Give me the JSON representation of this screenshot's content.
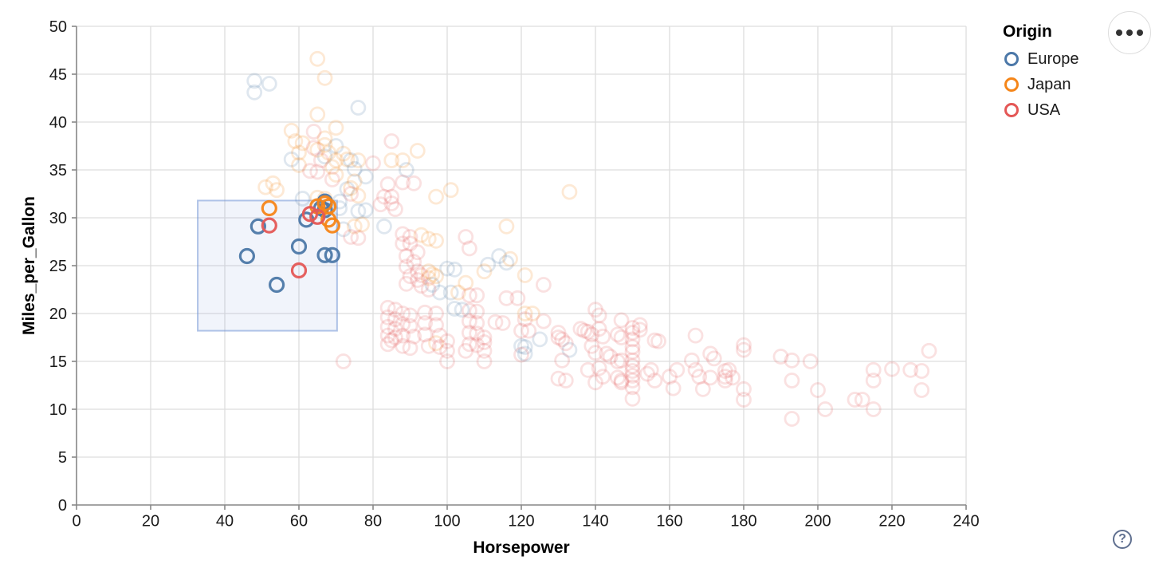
{
  "chart_data": {
    "type": "scatter",
    "xlabel": "Horsepower",
    "ylabel": "Miles_per_Gallon",
    "xlim": [
      0,
      240
    ],
    "ylim": [
      0,
      50
    ],
    "xticks": [
      0,
      20,
      40,
      60,
      80,
      100,
      120,
      140,
      160,
      180,
      200,
      220,
      240
    ],
    "yticks": [
      0,
      5,
      10,
      15,
      20,
      25,
      30,
      35,
      40,
      45,
      50
    ],
    "grid": true,
    "legend": {
      "title": "Origin",
      "position": "top-right",
      "entries": [
        {
          "label": "Europe",
          "color": "#4c78a8"
        },
        {
          "label": "Japan",
          "color": "#f58518"
        },
        {
          "label": "USA",
          "color": "#e45756"
        }
      ]
    },
    "brush": {
      "x": [
        32.7,
        70.3
      ],
      "y": [
        18.2,
        31.8
      ]
    },
    "series": [
      {
        "name": "Europe",
        "color": "#4c78a8",
        "selected": [
          [
            49,
            29.1
          ],
          [
            46,
            26
          ],
          [
            54,
            23
          ],
          [
            60,
            27
          ],
          [
            62,
            29.8
          ],
          [
            66,
            31
          ],
          [
            67,
            30.8
          ],
          [
            67,
            31.7
          ],
          [
            67,
            26.1
          ],
          [
            69,
            26.1
          ]
        ],
        "unselected": [
          [
            48,
            44.3
          ],
          [
            52,
            44
          ],
          [
            48,
            43.1
          ],
          [
            76,
            41.5
          ],
          [
            70,
            37.5
          ],
          [
            74,
            36
          ],
          [
            58,
            36.1
          ],
          [
            89,
            35
          ],
          [
            75,
            35.1
          ],
          [
            78,
            34.3
          ],
          [
            67,
            36.4
          ],
          [
            61,
            32
          ],
          [
            73,
            33
          ],
          [
            71,
            31.7
          ],
          [
            72,
            28.8
          ],
          [
            76,
            30.7
          ],
          [
            78,
            30.8
          ],
          [
            71,
            31
          ],
          [
            83,
            29.1
          ],
          [
            114,
            26
          ],
          [
            116,
            25.3
          ],
          [
            111,
            25.1
          ],
          [
            100,
            24.7
          ],
          [
            102,
            24.6
          ],
          [
            96,
            23
          ],
          [
            98,
            22.2
          ],
          [
            101,
            22.2
          ],
          [
            102,
            20.5
          ],
          [
            104,
            20.4
          ],
          [
            120,
            16.6
          ],
          [
            121,
            16.5
          ],
          [
            121,
            15.8
          ],
          [
            125,
            17.3
          ],
          [
            133,
            16.2
          ]
        ]
      },
      {
        "name": "Japan",
        "color": "#f58518",
        "selected": [
          [
            52,
            31
          ],
          [
            65,
            31.2
          ],
          [
            67,
            31.5
          ],
          [
            68,
            31.2
          ],
          [
            68,
            29.8
          ],
          [
            69,
            29.2
          ]
        ],
        "unselected": [
          [
            65,
            46.6
          ],
          [
            67,
            44.6
          ],
          [
            65,
            40.8
          ],
          [
            70,
            39.4
          ],
          [
            58,
            39.1
          ],
          [
            59,
            38
          ],
          [
            61,
            37.8
          ],
          [
            67,
            38.3
          ],
          [
            67,
            37.6
          ],
          [
            65,
            37.1
          ],
          [
            92,
            37
          ],
          [
            76,
            36
          ],
          [
            85,
            36
          ],
          [
            88,
            36
          ],
          [
            70,
            36
          ],
          [
            60,
            36.8
          ],
          [
            68,
            36.8
          ],
          [
            72,
            36.7
          ],
          [
            73,
            36.1
          ],
          [
            60,
            35.5
          ],
          [
            69,
            35.3
          ],
          [
            75,
            33.8
          ],
          [
            74,
            33.1
          ],
          [
            76,
            32.3
          ],
          [
            51,
            33.2
          ],
          [
            53,
            33.6
          ],
          [
            54,
            32.9
          ],
          [
            65,
            32.1
          ],
          [
            67,
            32
          ],
          [
            97,
            32.2
          ],
          [
            101,
            32.9
          ],
          [
            133,
            32.7
          ],
          [
            70,
            34.5
          ],
          [
            75,
            29.1
          ],
          [
            77,
            29.3
          ],
          [
            93,
            28.2
          ],
          [
            95,
            27.8
          ],
          [
            97,
            27.6
          ],
          [
            116,
            29.1
          ],
          [
            117,
            25.7
          ],
          [
            110,
            24.4
          ],
          [
            95,
            24.4
          ],
          [
            96,
            24.1
          ],
          [
            97,
            23.9
          ],
          [
            95,
            23.7
          ],
          [
            103,
            22.2
          ],
          [
            105,
            23.2
          ],
          [
            121,
            24
          ],
          [
            121,
            20
          ],
          [
            123,
            20
          ],
          [
            97,
            16.9
          ]
        ]
      },
      {
        "name": "USA",
        "color": "#e45756",
        "selected": [
          [
            52,
            29.2
          ],
          [
            63,
            30.4
          ],
          [
            65,
            30.1
          ],
          [
            60,
            24.5
          ]
        ],
        "unselected": [
          [
            85,
            38
          ],
          [
            64,
            39
          ],
          [
            64,
            37.3
          ],
          [
            80,
            35.7
          ],
          [
            66,
            36
          ],
          [
            84,
            33.5
          ],
          [
            88,
            33.7
          ],
          [
            91,
            33.6
          ],
          [
            63,
            34.9
          ],
          [
            65,
            34.8
          ],
          [
            85,
            32.2
          ],
          [
            83,
            32.2
          ],
          [
            69,
            34
          ],
          [
            85,
            31.5
          ],
          [
            82,
            31.4
          ],
          [
            86,
            30.9
          ],
          [
            74,
            32.5
          ],
          [
            74,
            28
          ],
          [
            76,
            27.9
          ],
          [
            88,
            28.3
          ],
          [
            90,
            28
          ],
          [
            88,
            27.3
          ],
          [
            90,
            27.3
          ],
          [
            92,
            26.4
          ],
          [
            105,
            28
          ],
          [
            106,
            26.8
          ],
          [
            89,
            26
          ],
          [
            91,
            25.4
          ],
          [
            89,
            24.9
          ],
          [
            92,
            24.4
          ],
          [
            93,
            24
          ],
          [
            90,
            23.9
          ],
          [
            92,
            23.5
          ],
          [
            89,
            23.1
          ],
          [
            93,
            22.9
          ],
          [
            95,
            22.5
          ],
          [
            106,
            21.9
          ],
          [
            108,
            21.9
          ],
          [
            126,
            23
          ],
          [
            116,
            21.6
          ],
          [
            119,
            21.6
          ],
          [
            84,
            20.6
          ],
          [
            86,
            20.4
          ],
          [
            84,
            19.6
          ],
          [
            86,
            19.4
          ],
          [
            84,
            18.6
          ],
          [
            86,
            18.4
          ],
          [
            84,
            17.7
          ],
          [
            86,
            17.5
          ],
          [
            84,
            16.8
          ],
          [
            85,
            17.2
          ],
          [
            88,
            20
          ],
          [
            90,
            19.8
          ],
          [
            88,
            18.9
          ],
          [
            90,
            18.7
          ],
          [
            88,
            17.7
          ],
          [
            91,
            17.6
          ],
          [
            88,
            16.6
          ],
          [
            90,
            16.4
          ],
          [
            94,
            20.1
          ],
          [
            97,
            20
          ],
          [
            94,
            19
          ],
          [
            97,
            18.8
          ],
          [
            94,
            17.8
          ],
          [
            98,
            17.7
          ],
          [
            95,
            16.6
          ],
          [
            98,
            16.5
          ],
          [
            100,
            17.1
          ],
          [
            100,
            16.1
          ],
          [
            100,
            15
          ],
          [
            105,
            16.1
          ],
          [
            110,
            17.5
          ],
          [
            110,
            17
          ],
          [
            110,
            16.1
          ],
          [
            110,
            15
          ],
          [
            106,
            20.3
          ],
          [
            108,
            20.2
          ],
          [
            106,
            19.2
          ],
          [
            108,
            19
          ],
          [
            106,
            18
          ],
          [
            108,
            17.9
          ],
          [
            106,
            16.8
          ],
          [
            108,
            16.7
          ],
          [
            113,
            19.1
          ],
          [
            115,
            19
          ],
          [
            121,
            19.4
          ],
          [
            72,
            15
          ],
          [
            120,
            18.2
          ],
          [
            122,
            18.2
          ],
          [
            120,
            15.7
          ],
          [
            126,
            19.2
          ],
          [
            130,
            18
          ],
          [
            131,
            17.3
          ],
          [
            132,
            16.9
          ],
          [
            130,
            17.5
          ],
          [
            131,
            15.1
          ],
          [
            130,
            13.2
          ],
          [
            132,
            13
          ],
          [
            137,
            18.2
          ],
          [
            136,
            18.4
          ],
          [
            138,
            18.1
          ],
          [
            139,
            17.8
          ],
          [
            140,
            20.4
          ],
          [
            141,
            19.8
          ],
          [
            141,
            18.4
          ],
          [
            142,
            17.6
          ],
          [
            139,
            16.6
          ],
          [
            140,
            15.9
          ],
          [
            143,
            15.8
          ],
          [
            144,
            15.5
          ],
          [
            138,
            14.1
          ],
          [
            141,
            14.3
          ],
          [
            142,
            13.4
          ],
          [
            140,
            12.8
          ],
          [
            146,
            17.8
          ],
          [
            147,
            17.5
          ],
          [
            147,
            19.3
          ],
          [
            146,
            15
          ],
          [
            147,
            15.1
          ],
          [
            146,
            13.3
          ],
          [
            147,
            13
          ],
          [
            147,
            12.8
          ],
          [
            150,
            18.5
          ],
          [
            150,
            18
          ],
          [
            150,
            17.3
          ],
          [
            150,
            16.5
          ],
          [
            150,
            16
          ],
          [
            150,
            15.1
          ],
          [
            150,
            14.5
          ],
          [
            150,
            14
          ],
          [
            150,
            13.5
          ],
          [
            150,
            13
          ],
          [
            150,
            12.3
          ],
          [
            150,
            11.1
          ],
          [
            152,
            18.3
          ],
          [
            152,
            18.8
          ],
          [
            155,
            14.1
          ],
          [
            154,
            13.7
          ],
          [
            156,
            13
          ],
          [
            156,
            17.2
          ],
          [
            157,
            17.1
          ],
          [
            160,
            13.4
          ],
          [
            161,
            12.2
          ],
          [
            162,
            14.1
          ],
          [
            166,
            15.1
          ],
          [
            167,
            14.1
          ],
          [
            167,
            17.7
          ],
          [
            168,
            13.4
          ],
          [
            169,
            12.1
          ],
          [
            171,
            15.8
          ],
          [
            172,
            15.3
          ],
          [
            171,
            13.3
          ],
          [
            175,
            14
          ],
          [
            175,
            13.4
          ],
          [
            175,
            13
          ],
          [
            176,
            14.1
          ],
          [
            177,
            13.3
          ],
          [
            180,
            16.7
          ],
          [
            180,
            16.2
          ],
          [
            180,
            12.1
          ],
          [
            180,
            11
          ],
          [
            190,
            15.5
          ],
          [
            193,
            15.1
          ],
          [
            193,
            13
          ],
          [
            193,
            9
          ],
          [
            198,
            15
          ],
          [
            200,
            12
          ],
          [
            202,
            10
          ],
          [
            210,
            11
          ],
          [
            212,
            11
          ],
          [
            215,
            14.1
          ],
          [
            215,
            13
          ],
          [
            215,
            10
          ],
          [
            220,
            14.2
          ],
          [
            225,
            14.1
          ],
          [
            228,
            14
          ],
          [
            228,
            12
          ],
          [
            230,
            16.1
          ]
        ]
      }
    ]
  },
  "controls": {
    "help_glyph": "?"
  }
}
